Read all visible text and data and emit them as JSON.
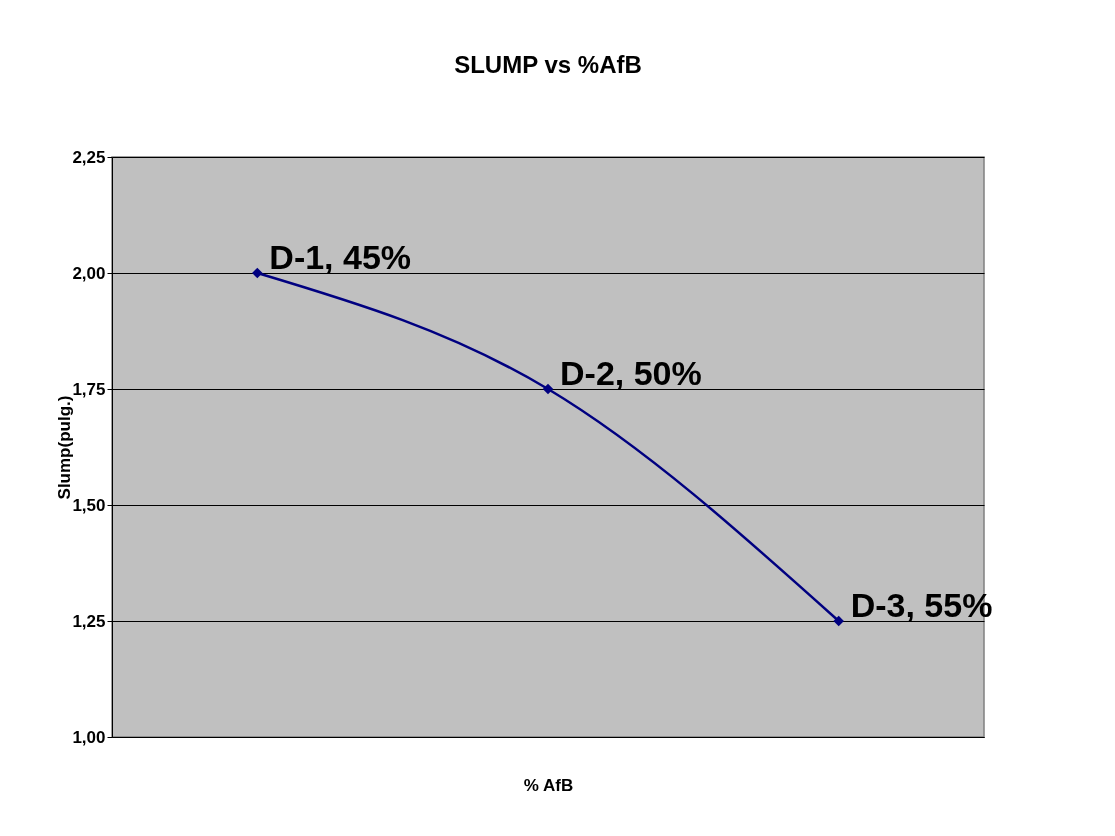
{
  "chart_data": {
    "type": "line",
    "title": "SLUMP vs %AfB",
    "xlabel": "% AfB",
    "ylabel": "Slump(pulg.)",
    "categories": [
      null,
      null,
      null
    ],
    "series": [
      {
        "color": "#000080",
        "values": [
          2.0,
          1.75,
          1.25
        ]
      }
    ],
    "annotations": [
      "D-1, 45%",
      "D-2, 50%",
      "D-3, 55%"
    ],
    "ylim": [
      1.0,
      2.25
    ],
    "yticks": [
      {
        "value": 1.0,
        "label": "1,00"
      },
      {
        "value": 1.25,
        "label": "1,25"
      },
      {
        "value": 1.5,
        "label": "1,50"
      },
      {
        "value": 1.75,
        "label": "1,75"
      },
      {
        "value": 2.0,
        "label": "2,00"
      },
      {
        "value": 2.25,
        "label": "2,25"
      }
    ],
    "grid": "y",
    "marker": "diamond",
    "line_style": "solid"
  }
}
